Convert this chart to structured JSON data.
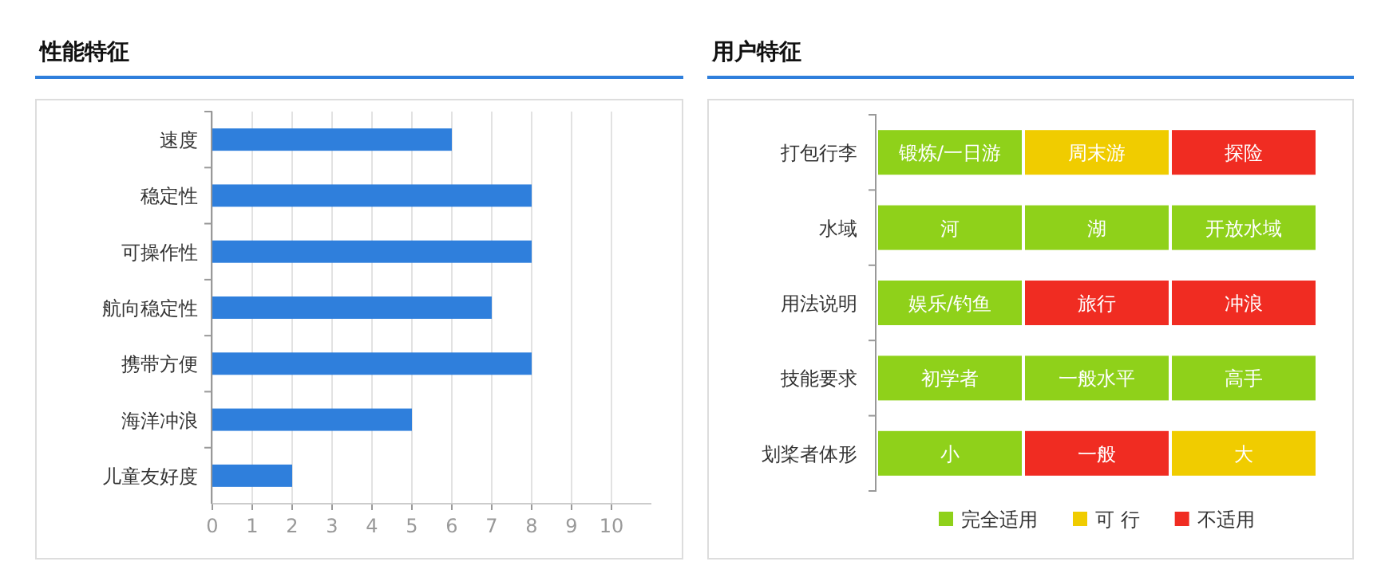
{
  "chart_data": [
    {
      "type": "bar",
      "title": "性能特征",
      "orientation": "horizontal",
      "categories": [
        "速度",
        "稳定性",
        "可操作性",
        "航向稳定性",
        "携带方便",
        "海洋冲浪",
        "儿童友好度"
      ],
      "values": [
        6,
        8,
        8,
        7,
        8,
        5,
        2
      ],
      "color": "#2f7fdc",
      "xlim": [
        0,
        11
      ],
      "xticks": [
        0,
        1,
        2,
        3,
        4,
        5,
        6,
        7,
        8,
        9,
        10
      ],
      "grid": "x",
      "legend": false
    },
    {
      "type": "other",
      "title": "用户特征",
      "y_categories": [
        "打包行李",
        "水域",
        "用法说明",
        "技能要求",
        "划桨者体形"
      ],
      "cell_labels": [
        [
          "锻炼/一日游",
          "周末游",
          "探险"
        ],
        [
          "河",
          "湖",
          "开放水域"
        ],
        [
          "娱乐/钓鱼",
          "旅行",
          "冲浪"
        ],
        [
          "初学者",
          "一般水平",
          "高手"
        ],
        [
          "小",
          "一般",
          "大"
        ]
      ],
      "colors": [
        "#8fd11a",
        "#f0cc00",
        "#f02c22",
        "#8fd11a",
        "#8fd11a",
        "#8fd11a",
        "#8fd11a",
        "#f02c22",
        "#f02c22",
        "#8fd11a",
        "#8fd11a",
        "#8fd11a",
        "#8fd11a",
        "#f02c22",
        "#f0cc00"
      ],
      "series": [
        {
          "name": "完全适用",
          "color": "#8fd11a"
        },
        {
          "name": "可 行",
          "color": "#f0cc00"
        },
        {
          "name": "不适用",
          "color": "#f02c22"
        }
      ],
      "legend": "bottom"
    }
  ]
}
